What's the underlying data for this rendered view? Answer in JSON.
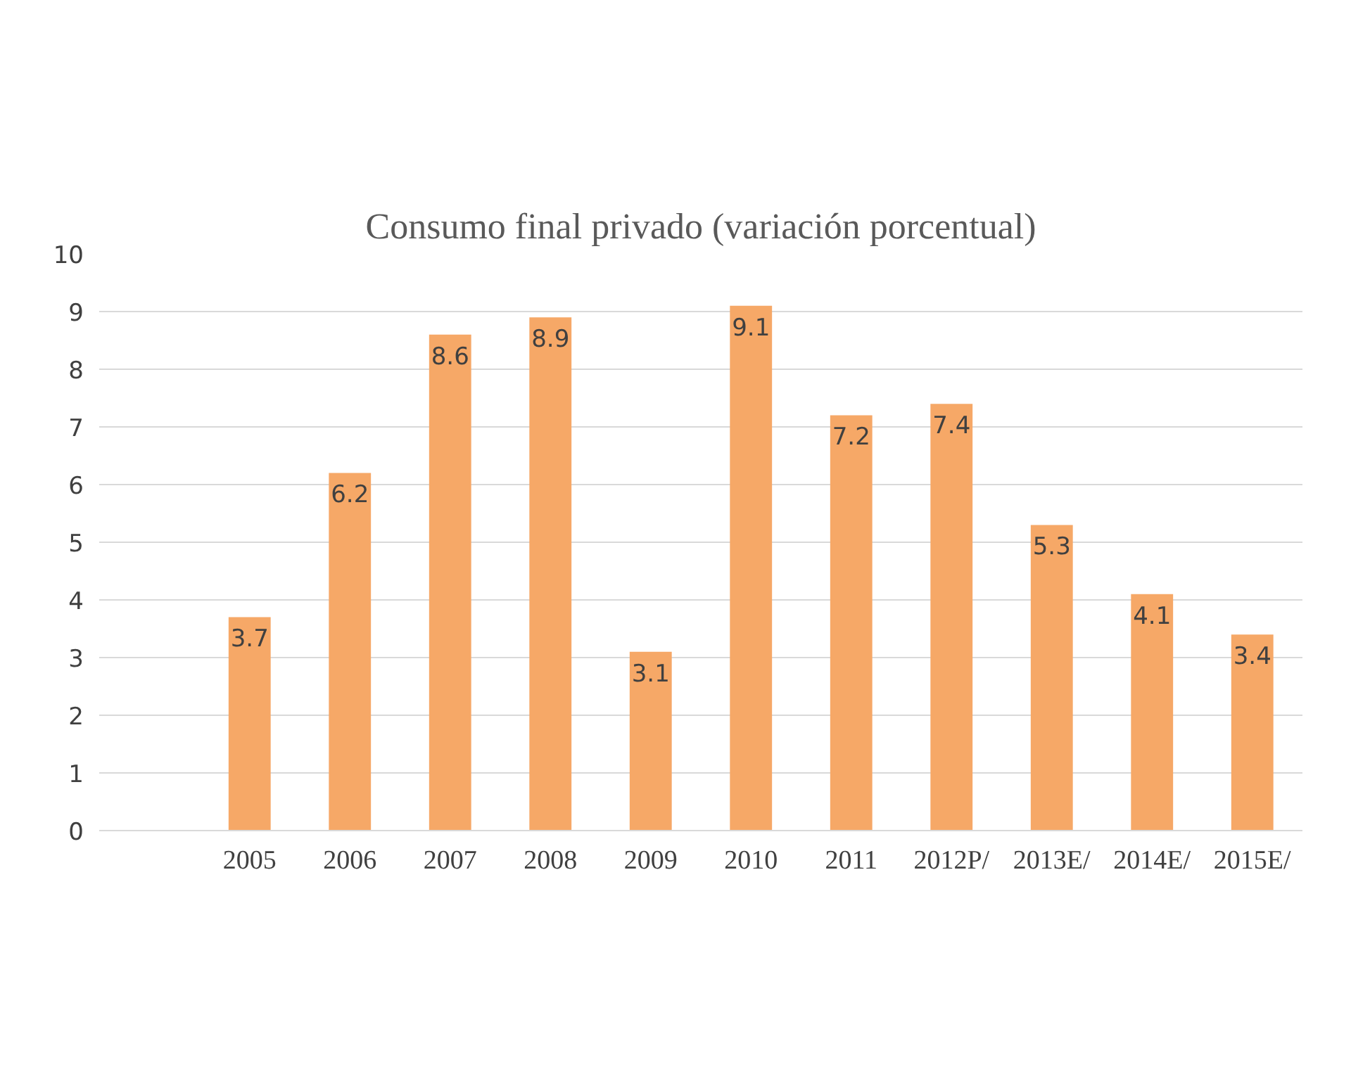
{
  "chart_data": {
    "type": "bar",
    "title": "Consumo final privado (variación porcentual)",
    "categories": [
      null,
      "2005",
      "2006",
      "2007",
      "2008",
      "2009",
      "2010",
      "2011",
      "2012P/",
      "2013E/",
      "2014E/",
      "2015E/"
    ],
    "values": [
      null,
      3.7,
      6.2,
      8.6,
      8.9,
      3.1,
      9.1,
      7.2,
      7.4,
      5.3,
      4.1,
      3.4
    ],
    "color": "#f6a867",
    "ylim": [
      0,
      10
    ],
    "yticks": [
      0,
      1,
      2,
      3,
      4,
      5,
      6,
      7,
      8,
      9,
      10
    ],
    "grid": "y",
    "data_labels": true
  }
}
